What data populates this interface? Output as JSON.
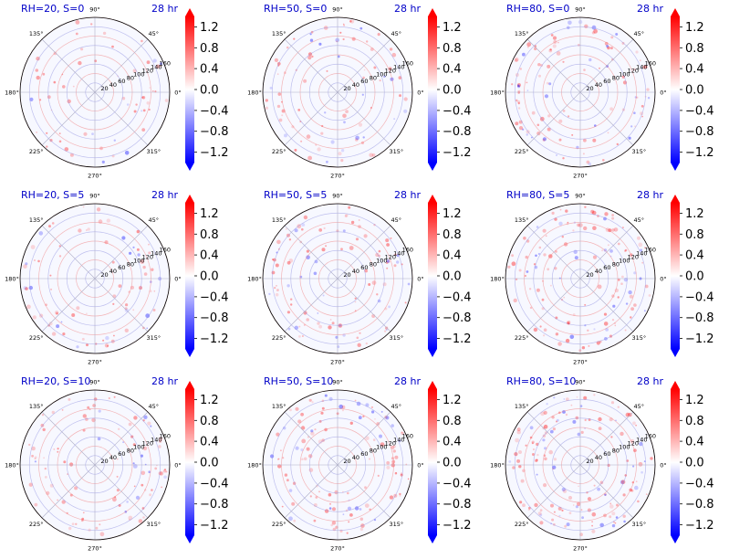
{
  "colors": {
    "negative": "#0000ff",
    "zero": "#ffffff",
    "positive": "#ff0000",
    "title_text": "#0000c8",
    "axis": "#000000",
    "gridline_pos": "#f08080",
    "gridline_neg": "#9090e0"
  },
  "colorbar": {
    "ticks": [
      "1.2",
      "0.8",
      "0.4",
      "0.0",
      "−0.4",
      "−0.8",
      "−1.2"
    ],
    "tick_values": [
      1.2,
      0.8,
      0.4,
      0.0,
      -0.4,
      -0.8,
      -1.2
    ],
    "range": [
      -1.4,
      1.4
    ],
    "extend": "both"
  },
  "chart_data": [
    {
      "type": "heatmap",
      "projection": "polar",
      "title": "RH=20, S=0",
      "time": "28 hr"
    },
    {
      "type": "heatmap",
      "projection": "polar",
      "title": "RH=50, S=0",
      "time": "28 hr"
    },
    {
      "type": "heatmap",
      "projection": "polar",
      "title": "RH=80, S=0",
      "time": "28 hr"
    },
    {
      "type": "heatmap",
      "projection": "polar",
      "title": "RH=20, S=5",
      "time": "28 hr"
    },
    {
      "type": "heatmap",
      "projection": "polar",
      "title": "RH=50, S=5",
      "time": "28 hr"
    },
    {
      "type": "heatmap",
      "projection": "polar",
      "title": "RH=80, S=5",
      "time": "28 hr"
    },
    {
      "type": "heatmap",
      "projection": "polar",
      "title": "RH=20, S=10",
      "time": "28 hr"
    },
    {
      "type": "heatmap",
      "projection": "polar",
      "title": "RH=50, S=10",
      "time": "28 hr"
    },
    {
      "type": "heatmap",
      "projection": "polar",
      "title": "RH=80, S=10",
      "time": "28 hr"
    }
  ],
  "polar": {
    "angle_labels": [
      "0°",
      "45°",
      "90°",
      "135°",
      "180°",
      "225°",
      "270°",
      "315°"
    ],
    "angle_values": [
      0,
      45,
      90,
      135,
      180,
      225,
      270,
      315
    ],
    "radial_labels": [
      "20",
      "40",
      "60",
      "80",
      "100",
      "120",
      "140",
      "160"
    ],
    "radial_values": [
      20,
      40,
      60,
      80,
      100,
      120,
      140,
      160
    ],
    "rmax": 160,
    "radial_label_angle": 22.5,
    "grid": true
  }
}
